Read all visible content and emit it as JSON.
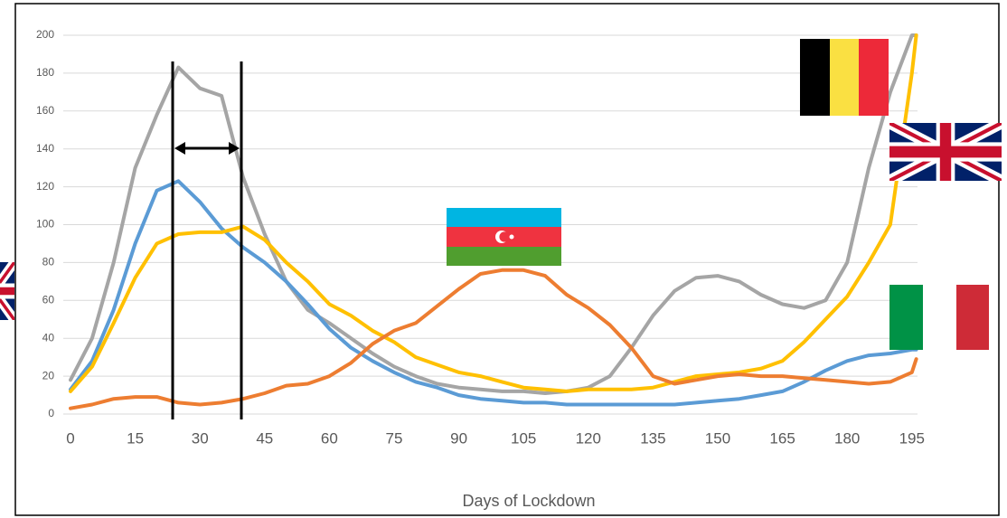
{
  "chart_data": {
    "type": "line",
    "x_label": "Days of Lockdown",
    "x": [
      0,
      5,
      10,
      15,
      20,
      25,
      30,
      35,
      40,
      45,
      50,
      55,
      60,
      65,
      70,
      75,
      80,
      85,
      90,
      95,
      100,
      105,
      110,
      115,
      120,
      125,
      130,
      135,
      140,
      145,
      150,
      155,
      160,
      165,
      170,
      175,
      180,
      185,
      190,
      195,
      196
    ],
    "series": [
      {
        "color": "#a5a5a5",
        "values": [
          18,
          40,
          80,
          130,
          158,
          183,
          172,
          168,
          125,
          95,
          70,
          55,
          48,
          40,
          32,
          25,
          20,
          16,
          14,
          13,
          12,
          12,
          11,
          12,
          14,
          20,
          35,
          52,
          65,
          72,
          73,
          70,
          63,
          58,
          56,
          60,
          80,
          130,
          170,
          200,
          200
        ]
      },
      {
        "color": "#5b9bd5",
        "values": [
          13,
          28,
          55,
          90,
          118,
          123,
          112,
          98,
          88,
          80,
          70,
          58,
          45,
          35,
          28,
          22,
          17,
          14,
          10,
          8,
          7,
          6,
          6,
          5,
          5,
          5,
          5,
          5,
          5,
          6,
          7,
          8,
          10,
          12,
          17,
          23,
          28,
          31,
          32,
          34,
          34
        ]
      },
      {
        "color": "#ffc000",
        "values": [
          12,
          25,
          48,
          72,
          90,
          95,
          96,
          96,
          99,
          92,
          80,
          70,
          58,
          52,
          44,
          38,
          30,
          26,
          22,
          20,
          17,
          14,
          13,
          12,
          13,
          13,
          13,
          14,
          17,
          20,
          21,
          22,
          24,
          28,
          38,
          50,
          62,
          80,
          100,
          180,
          200
        ]
      },
      {
        "color": "#ed7d31",
        "values": [
          3,
          5,
          8,
          9,
          9,
          6,
          5,
          6,
          8,
          11,
          15,
          16,
          20,
          27,
          37,
          44,
          48,
          57,
          66,
          74,
          76,
          76,
          73,
          63,
          56,
          47,
          35,
          20,
          16,
          18,
          20,
          21,
          20,
          20,
          19,
          18,
          17,
          16,
          17,
          22,
          29
        ]
      }
    ],
    "xlim": [
      0,
      196.3
    ],
    "ylim": [
      0,
      200
    ],
    "xticks": [
      0,
      15,
      30,
      45,
      60,
      75,
      90,
      105,
      120,
      135,
      150,
      165,
      180,
      195
    ],
    "yticks": [
      0,
      20,
      40,
      60,
      80,
      100,
      120,
      140,
      160,
      180,
      200
    ],
    "grid": true
  }
}
